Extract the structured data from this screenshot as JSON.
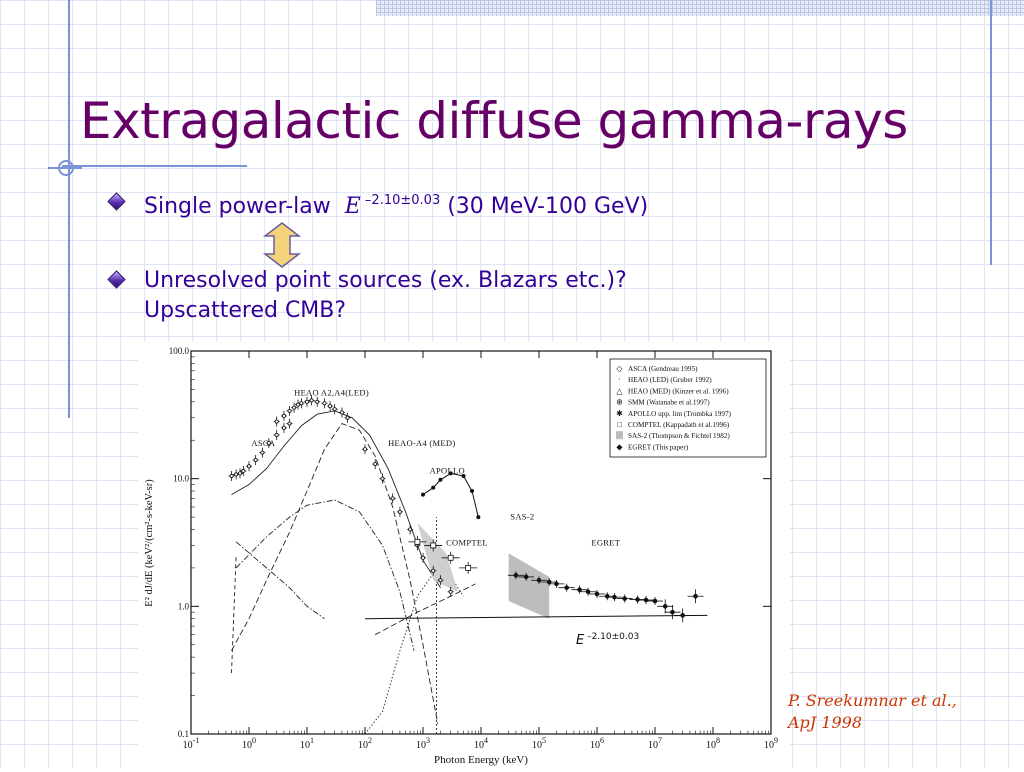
{
  "slide": {
    "title": "Extragalactic diffuse gamma-rays",
    "bullets": [
      {
        "prefix": "Single power-law  ",
        "symbol": "E",
        "exponent": " –2.10±0.03",
        "suffix": " (30 MeV-100 GeV)"
      },
      {
        "line1": "Unresolved point sources (ex. Blazars etc.)?",
        "line2": "Upscattered CMB?"
      }
    ],
    "double_arrow_icon": "double-arrow-icon",
    "citation_line1": "P. Sreekumnar et al.,",
    "citation_line2": "ApJ 1998",
    "colors": {
      "title": "#660066",
      "text": "#330099",
      "citation": "#cc3300",
      "arrow": "#f3d27a"
    }
  },
  "chart_data": {
    "type": "scatter",
    "title": "",
    "xlabel": "Photon Energy (keV)",
    "ylabel": "E² dJ/dE (keV²/(cm²-s-keV-sr)",
    "x_log": true,
    "y_log": true,
    "xlim": [
      0.1,
      1000000000
    ],
    "ylim": [
      0.1,
      100
    ],
    "x_ticks": [
      {
        "base": "10",
        "exp": "-1",
        "value": 0.1
      },
      {
        "base": "10",
        "exp": "0",
        "value": 1
      },
      {
        "base": "10",
        "exp": "1",
        "value": 10
      },
      {
        "base": "10",
        "exp": "2",
        "value": 100
      },
      {
        "base": "10",
        "exp": "3",
        "value": 1000
      },
      {
        "base": "10",
        "exp": "4",
        "value": 10000
      },
      {
        "base": "10",
        "exp": "5",
        "value": 100000
      },
      {
        "base": "10",
        "exp": "6",
        "value": 1000000
      },
      {
        "base": "10",
        "exp": "7",
        "value": 10000000
      },
      {
        "base": "10",
        "exp": "8",
        "value": 100000000
      },
      {
        "base": "10",
        "exp": "9",
        "value": 1000000000
      }
    ],
    "y_ticks": [
      {
        "label": "100.0",
        "value": 100
      },
      {
        "label": "10.0",
        "value": 10
      },
      {
        "label": "1.0",
        "value": 1
      },
      {
        "label": "0.1",
        "value": 0.1
      }
    ],
    "legend_position": "top-right",
    "legend": [
      {
        "symbol": "◇",
        "label": "ASCA (Gendreau 1995)"
      },
      {
        "symbol": "·",
        "label": "HEAO (LED) (Gruber 1992)"
      },
      {
        "symbol": "△",
        "label": "HEAO (MED) (Kinzer et al. 1996)"
      },
      {
        "symbol": "⊕",
        "label": "SMM (Watanabe et al.1997)"
      },
      {
        "symbol": "✱",
        "label": "APOLLO upp. lim (Trombka 1997)"
      },
      {
        "symbol": "□",
        "label": "COMPTEL (Kappadath et al.1996)"
      },
      {
        "symbol": "■",
        "label": "SAS-2 (Thompson & Fichtel 1982)",
        "gray": true
      },
      {
        "symbol": "◆",
        "label": "EGRET (This paper)"
      }
    ],
    "annotations": [
      {
        "text": "HEAO A2,A4(LED)",
        "x": 6,
        "y": 45
      },
      {
        "text": "ASCA",
        "x": 1.1,
        "y": 18
      },
      {
        "text": "HEAO-A4 (MED)",
        "x": 250,
        "y": 18
      },
      {
        "text": "APOLLO",
        "x": 1300,
        "y": 11
      },
      {
        "text": "SAS-2",
        "x": 32000,
        "y": 4.8
      },
      {
        "text": "COMPTEL",
        "x": 2500,
        "y": 3.0
      },
      {
        "text": "EGRET",
        "x": 800000,
        "y": 3.0
      }
    ],
    "power_law_label": {
      "symbol": "E",
      "exponent": " –2.10±0.03"
    },
    "series": [
      {
        "name": "ASCA",
        "points": [
          [
            0.5,
            10.5
          ],
          [
            0.6,
            10.8
          ],
          [
            0.7,
            11
          ],
          [
            0.8,
            11.5
          ],
          [
            1,
            12.5
          ],
          [
            1.3,
            14
          ],
          [
            1.7,
            16
          ],
          [
            2.2,
            19
          ],
          [
            3,
            22
          ],
          [
            4,
            25
          ],
          [
            5,
            27
          ]
        ]
      },
      {
        "name": "HEAO (LED)",
        "points": [
          [
            3,
            28
          ],
          [
            4,
            31
          ],
          [
            5,
            34
          ],
          [
            6,
            36
          ],
          [
            7,
            38
          ],
          [
            8,
            39
          ],
          [
            10,
            40
          ],
          [
            12,
            41
          ],
          [
            15,
            40
          ],
          [
            20,
            39
          ],
          [
            25,
            37
          ],
          [
            30,
            35
          ],
          [
            40,
            33
          ],
          [
            50,
            30
          ]
        ]
      },
      {
        "name": "HEAO (MED)",
        "points": [
          [
            100,
            17
          ],
          [
            150,
            13
          ],
          [
            200,
            10
          ],
          [
            300,
            7
          ],
          [
            400,
            5.5
          ],
          [
            600,
            4
          ],
          [
            800,
            3
          ],
          [
            1000,
            2.4
          ],
          [
            1500,
            1.9
          ],
          [
            2000,
            1.6
          ],
          [
            3000,
            1.3
          ]
        ]
      },
      {
        "name": "APOLLO",
        "points": [
          [
            1000,
            7.5
          ],
          [
            1500,
            8.5
          ],
          [
            2000,
            9.8
          ],
          [
            3000,
            11
          ],
          [
            5000,
            10.5
          ],
          [
            7000,
            8
          ],
          [
            9000,
            5
          ]
        ]
      },
      {
        "name": "COMPTEL",
        "points": [
          [
            800,
            3.2
          ],
          [
            1500,
            3.0
          ],
          [
            3000,
            2.4
          ],
          [
            6000,
            2.0
          ]
        ]
      },
      {
        "name": "EGRET",
        "points": [
          [
            40000,
            1.75
          ],
          [
            60000,
            1.7
          ],
          [
            100000,
            1.6
          ],
          [
            150000,
            1.55
          ],
          [
            200000,
            1.5
          ],
          [
            300000,
            1.4
          ],
          [
            500000,
            1.35
          ],
          [
            700000,
            1.3
          ],
          [
            1000000,
            1.25
          ],
          [
            1500000,
            1.2
          ],
          [
            2000000,
            1.18
          ],
          [
            3000000,
            1.15
          ],
          [
            5000000,
            1.13
          ],
          [
            7000000,
            1.12
          ],
          [
            10000000,
            1.1
          ],
          [
            15000000,
            1.0
          ],
          [
            20000000,
            0.9
          ],
          [
            30000000,
            0.85
          ],
          [
            50000000,
            1.2
          ]
        ]
      }
    ],
    "sas2_band": [
      [
        30000,
        1.1
      ],
      [
        30000,
        2.6
      ],
      [
        150000,
        1.7
      ],
      [
        150000,
        0.8
      ]
    ],
    "power_law_line": [
      [
        100,
        0.8
      ],
      [
        80000000,
        0.85
      ]
    ]
  }
}
